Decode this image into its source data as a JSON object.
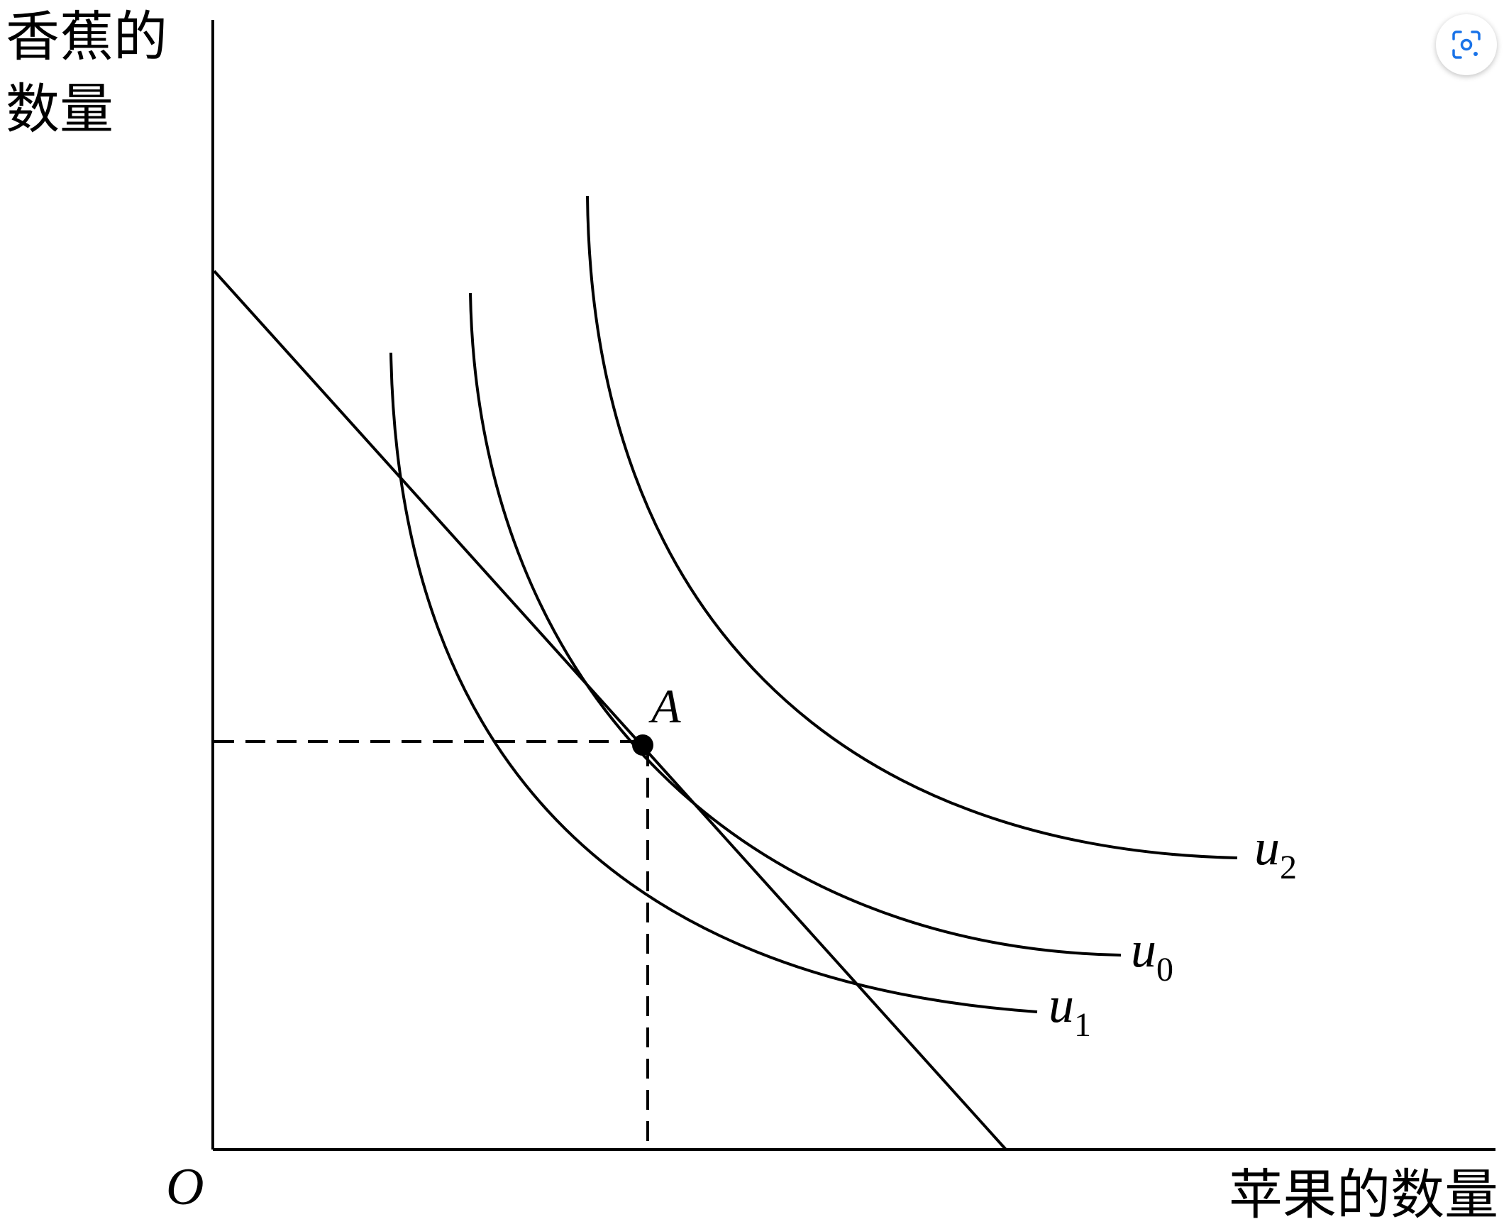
{
  "diagram": {
    "y_axis_label_line1": "香蕉的",
    "y_axis_label_line2": "数量",
    "x_axis_label": "苹果的数量",
    "origin_label": "O",
    "point_label": "A",
    "curves": [
      {
        "id": "u2",
        "letter": "u",
        "subscript": "2"
      },
      {
        "id": "u0",
        "letter": "u",
        "subscript": "0"
      },
      {
        "id": "u1",
        "letter": "u",
        "subscript": "1"
      }
    ]
  },
  "toolbar": {
    "lens_button_icon": "visual-search-icon"
  },
  "colors": {
    "ink": "#000000",
    "background": "#ffffff"
  }
}
